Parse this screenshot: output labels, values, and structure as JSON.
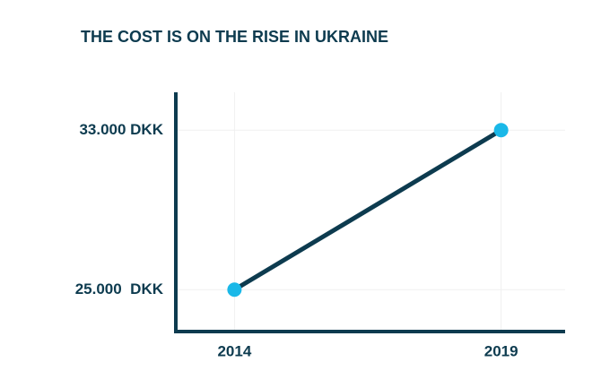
{
  "chart_data": {
    "type": "line",
    "title": "THE COST IS ON THE RISE IN UKRAINE",
    "x": [
      2014,
      2019
    ],
    "series": [
      {
        "name": "Cost",
        "color": "#0d3b4f",
        "marker_color": "#1ab8e8",
        "values": [
          25000,
          33000
        ]
      }
    ],
    "xlim": [
      2012.9,
      2020.2
    ],
    "xticks": [
      2014,
      2019
    ],
    "ylim": [
      22900,
      34900
    ],
    "yticks": [
      {
        "value": 25000,
        "label": "25.000  DKK"
      },
      {
        "value": 33000,
        "label": "33.000 DKK"
      }
    ],
    "grid": true
  }
}
